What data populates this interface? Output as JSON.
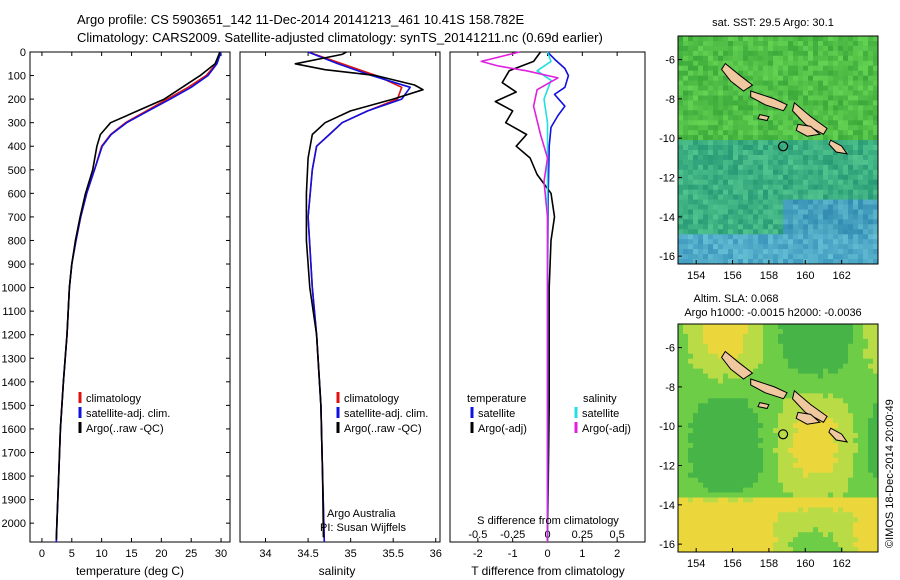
{
  "header": {
    "line1": "Argo profile: CS 5903651_142 11-Dec-2014 20141213_461 10.41S 158.782E",
    "line2": "Climatology: CARS2009. Satellite-adjusted climatology: synTS_20141211.nc (0.69d earlier)"
  },
  "colors": {
    "climatology": "#e01010",
    "satellite": "#1010e0",
    "argo": "#000000",
    "sat_salinity": "#20e0e0",
    "argo_salinity": "#e020e0"
  },
  "chart_data": [
    {
      "id": "temperature",
      "type": "line",
      "xlabel": "temperature (deg C)",
      "ylabel": "",
      "xlim": [
        -2,
        31.5
      ],
      "ylim": [
        2080,
        0
      ],
      "xticks": [
        0,
        5,
        10,
        15,
        20,
        25,
        30
      ],
      "yticks": [
        0,
        100,
        200,
        300,
        400,
        500,
        600,
        700,
        800,
        900,
        1000,
        1100,
        1200,
        1300,
        1400,
        1500,
        1600,
        1700,
        1800,
        1900,
        2000
      ],
      "legend": [
        "climatology",
        "satellite-adj. clim.",
        "Argo(..raw -QC)"
      ],
      "series": [
        {
          "name": "climatology",
          "color_key": "climatology",
          "points": [
            [
              30.0,
              0
            ],
            [
              29.2,
              50
            ],
            [
              27.5,
              100
            ],
            [
              24.5,
              150
            ],
            [
              21.0,
              200
            ],
            [
              17.5,
              250
            ],
            [
              14.0,
              300
            ],
            [
              11.5,
              350
            ],
            [
              10.0,
              400
            ],
            [
              8.8,
              500
            ],
            [
              7.5,
              600
            ],
            [
              6.5,
              700
            ],
            [
              5.7,
              800
            ],
            [
              5.0,
              900
            ],
            [
              4.6,
              1000
            ],
            [
              4.2,
              1200
            ],
            [
              3.6,
              1400
            ],
            [
              3.1,
              1600
            ],
            [
              2.8,
              1800
            ],
            [
              2.5,
              2000
            ],
            [
              2.4,
              2080
            ]
          ]
        },
        {
          "name": "satellite-adj. clim.",
          "color_key": "satellite",
          "points": [
            [
              30.0,
              0
            ],
            [
              29.3,
              50
            ],
            [
              27.8,
              100
            ],
            [
              25.0,
              150
            ],
            [
              21.5,
              200
            ],
            [
              17.8,
              250
            ],
            [
              14.2,
              300
            ],
            [
              11.6,
              350
            ],
            [
              10.1,
              400
            ],
            [
              8.8,
              500
            ],
            [
              7.5,
              600
            ],
            [
              6.5,
              700
            ],
            [
              5.7,
              800
            ],
            [
              5.0,
              900
            ],
            [
              4.6,
              1000
            ],
            [
              4.2,
              1200
            ],
            [
              3.6,
              1400
            ],
            [
              3.1,
              1600
            ],
            [
              2.8,
              1800
            ],
            [
              2.5,
              2000
            ],
            [
              2.4,
              2080
            ]
          ]
        },
        {
          "name": "Argo(..raw -QC)",
          "color_key": "argo",
          "points": [
            [
              29.8,
              0
            ],
            [
              29.0,
              50
            ],
            [
              26.5,
              100
            ],
            [
              23.5,
              150
            ],
            [
              20.5,
              200
            ],
            [
              16.0,
              250
            ],
            [
              11.5,
              300
            ],
            [
              9.8,
              350
            ],
            [
              9.2,
              400
            ],
            [
              8.5,
              500
            ],
            [
              7.3,
              600
            ],
            [
              6.4,
              700
            ],
            [
              5.6,
              800
            ],
            [
              5.0,
              900
            ],
            [
              4.6,
              1000
            ],
            [
              4.2,
              1200
            ],
            [
              3.6,
              1400
            ],
            [
              3.1,
              1600
            ],
            [
              2.8,
              1800
            ],
            [
              2.5,
              2000
            ],
            [
              2.4,
              2070
            ]
          ]
        }
      ]
    },
    {
      "id": "salinity",
      "type": "line",
      "xlabel": "salinity",
      "xlim": [
        33.7,
        36.05
      ],
      "ylim": [
        2080,
        0
      ],
      "xticks": [
        34,
        34.5,
        35,
        35.5,
        36
      ],
      "legend": [
        "climatology",
        "satellite-adj. clim.",
        "Argo(..raw -QC)"
      ],
      "annotation": [
        "Argo Australia",
        "PI: Susan Wijffels"
      ],
      "series": [
        {
          "name": "climatology",
          "color_key": "climatology",
          "points": [
            [
              34.5,
              0
            ],
            [
              34.9,
              50
            ],
            [
              35.3,
              100
            ],
            [
              35.6,
              150
            ],
            [
              35.55,
              200
            ],
            [
              35.2,
              250
            ],
            [
              34.9,
              300
            ],
            [
              34.75,
              350
            ],
            [
              34.6,
              400
            ],
            [
              34.55,
              500
            ],
            [
              34.5,
              700
            ],
            [
              34.55,
              1000
            ],
            [
              34.6,
              1200
            ],
            [
              34.65,
              1500
            ],
            [
              34.67,
              1800
            ],
            [
              34.69,
              2080
            ]
          ]
        },
        {
          "name": "satellite-adj. clim.",
          "color_key": "satellite",
          "points": [
            [
              34.5,
              0
            ],
            [
              34.85,
              50
            ],
            [
              35.25,
              100
            ],
            [
              35.7,
              150
            ],
            [
              35.6,
              200
            ],
            [
              35.2,
              250
            ],
            [
              34.9,
              300
            ],
            [
              34.75,
              350
            ],
            [
              34.6,
              400
            ],
            [
              34.55,
              500
            ],
            [
              34.5,
              700
            ],
            [
              34.55,
              1000
            ],
            [
              34.6,
              1200
            ],
            [
              34.65,
              1500
            ],
            [
              34.67,
              1800
            ],
            [
              34.69,
              2080
            ]
          ]
        },
        {
          "name": "Argo(..raw -QC)",
          "color_key": "argo",
          "points": [
            [
              34.95,
              0
            ],
            [
              34.9,
              10
            ],
            [
              34.35,
              50
            ],
            [
              34.7,
              75
            ],
            [
              35.3,
              100
            ],
            [
              35.75,
              140
            ],
            [
              35.85,
              160
            ],
            [
              35.5,
              200
            ],
            [
              35.0,
              250
            ],
            [
              34.7,
              300
            ],
            [
              34.55,
              350
            ],
            [
              34.5,
              450
            ],
            [
              34.48,
              600
            ],
            [
              34.48,
              800
            ],
            [
              34.52,
              1000
            ],
            [
              34.6,
              1200
            ],
            [
              34.65,
              1500
            ],
            [
              34.67,
              1800
            ],
            [
              34.68,
              2060
            ]
          ]
        }
      ]
    },
    {
      "id": "difference",
      "type": "line",
      "xlabel": "T difference from climatology",
      "xlabel_top": "S difference from climatology",
      "xlim": [
        -2.8,
        2.8
      ],
      "ylim": [
        2080,
        0
      ],
      "xticks": [
        -2,
        -1,
        0,
        1,
        2
      ],
      "s_ticks": [
        {
          "pos": -2,
          "label": "-0.5"
        },
        {
          "pos": -1,
          "label": "-0.25"
        },
        {
          "pos": 0,
          "label": "0"
        },
        {
          "pos": 1,
          "label": "0.25"
        },
        {
          "pos": 2,
          "label": "0.5"
        }
      ],
      "legend": {
        "left_title": "temperature",
        "right_title": "salinity",
        "left_items": [
          "satellite",
          "Argo(-adj)"
        ],
        "right_items": [
          "satellite",
          "Argo(-adj)"
        ]
      },
      "series": [
        {
          "name": "T satellite",
          "color_key": "satellite",
          "points": [
            [
              0,
              0
            ],
            [
              0.2,
              30
            ],
            [
              0.5,
              70
            ],
            [
              0.6,
              100
            ],
            [
              0.5,
              150
            ],
            [
              0.2,
              180
            ],
            [
              0.5,
              230
            ],
            [
              0.3,
              270
            ],
            [
              0.1,
              320
            ],
            [
              0.05,
              400
            ],
            [
              0.02,
              600
            ],
            [
              0,
              1000
            ],
            [
              0,
              1500
            ],
            [
              0,
              2080
            ]
          ]
        },
        {
          "name": "T Argo(-adj)",
          "color_key": "argo",
          "points": [
            [
              -0.2,
              0
            ],
            [
              -0.4,
              40
            ],
            [
              -1.1,
              80
            ],
            [
              -1.3,
              130
            ],
            [
              -0.9,
              170
            ],
            [
              -1.5,
              210
            ],
            [
              -1.0,
              250
            ],
            [
              -1.2,
              300
            ],
            [
              -0.6,
              350
            ],
            [
              -0.9,
              400
            ],
            [
              -0.5,
              450
            ],
            [
              -0.3,
              520
            ],
            [
              0.1,
              600
            ],
            [
              0.2,
              700
            ],
            [
              0.1,
              800
            ],
            [
              0.05,
              1000
            ],
            [
              0.05,
              1500
            ],
            [
              0,
              2080
            ]
          ]
        },
        {
          "name": "S satellite",
          "color_key": "sat_salinity",
          "points": [
            [
              0,
              0
            ],
            [
              0.1,
              40
            ],
            [
              -0.3,
              80
            ],
            [
              0.1,
              120
            ],
            [
              -0.1,
              200
            ],
            [
              0,
              300
            ],
            [
              0,
              500
            ],
            [
              0,
              1000
            ],
            [
              0,
              2080
            ]
          ]
        },
        {
          "name": "S Argo(-adj)",
          "color_key": "argo_salinity",
          "points": [
            [
              -0.8,
              0
            ],
            [
              -1.9,
              40
            ],
            [
              -1.4,
              60
            ],
            [
              -0.6,
              80
            ],
            [
              0.3,
              110
            ],
            [
              -0.3,
              160
            ],
            [
              -0.4,
              230
            ],
            [
              -0.2,
              350
            ],
            [
              0,
              450
            ],
            [
              -0.1,
              550
            ],
            [
              0,
              700
            ],
            [
              0,
              1000
            ],
            [
              0,
              1500
            ],
            [
              0,
              2080
            ]
          ]
        }
      ]
    }
  ],
  "maps": {
    "sst": {
      "title": "sat. SST: 29.5  Argo: 30.1",
      "xticks": [
        154,
        156,
        158,
        160,
        162
      ],
      "yticks": [
        -6,
        -8,
        -10,
        -12,
        -14,
        -16
      ],
      "lon_range": [
        153.0,
        164.0
      ],
      "lat_range": [
        -16.4,
        -4.8
      ],
      "argo_position": [
        158.782,
        -10.41
      ]
    },
    "altim": {
      "title1": "Altim. SLA: 0.068",
      "title2": "Argo h1000: -0.0015 h2000: -0.0036",
      "xticks": [
        154,
        156,
        158,
        160,
        162
      ],
      "yticks": [
        -6,
        -8,
        -10,
        -12,
        -14,
        -16
      ],
      "lon_range": [
        153.0,
        164.0
      ],
      "lat_range": [
        -16.4,
        -4.8
      ],
      "argo_position": [
        158.782,
        -10.41
      ]
    }
  },
  "credit": "©IMOS 18-Dec-2014 20:00:49"
}
